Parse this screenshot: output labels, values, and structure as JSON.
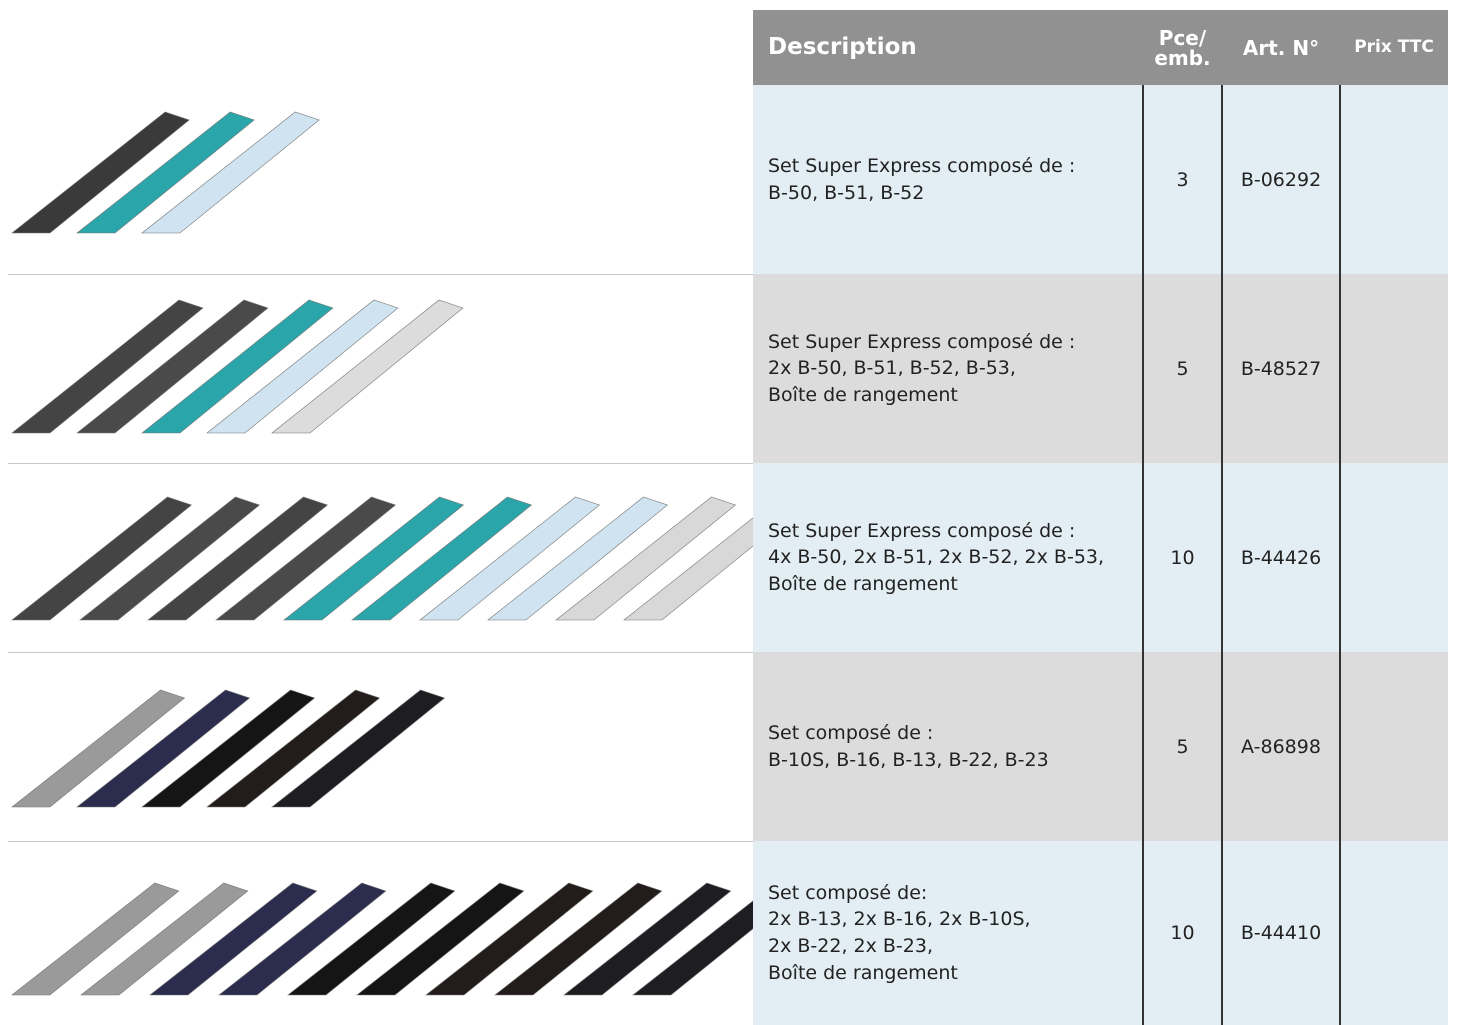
{
  "table": {
    "headers": [
      "Description",
      [
        "Pce/",
        "emb."
      ],
      "Art. N°",
      "Prix TTC"
    ],
    "rows": [
      {
        "description": [
          "Set Super Express composé de :",
          "B-50, B-51, B-52"
        ],
        "pieces": 3,
        "article": "B-06292"
      },
      {
        "description": [
          "Set Super Express composé de :",
          "2x B-50, B-51, B-52, B-53,",
          "Boîte de rangement"
        ],
        "pieces": 5,
        "article": "B-48527"
      },
      {
        "description": [
          "Set Super Express composé de :",
          "4x B-50, 2x B-51, 2x B-52, 2x B-53,",
          "Boîte de rangement"
        ],
        "pieces": 10,
        "article": "B-44426"
      },
      {
        "description": [
          "Set composé de :",
          "B-10S, B-16, B-13, B-22, B-23"
        ],
        "pieces": 5,
        "article": "A-86898"
      },
      {
        "description": [
          "Set composé de:",
          "2x B-13, 2x B-16, 2x B-10S,",
          "2x B-22, 2x B-23,",
          "Boîte de rangement"
        ],
        "pieces": 10,
        "article": "B-44410"
      }
    ]
  }
}
